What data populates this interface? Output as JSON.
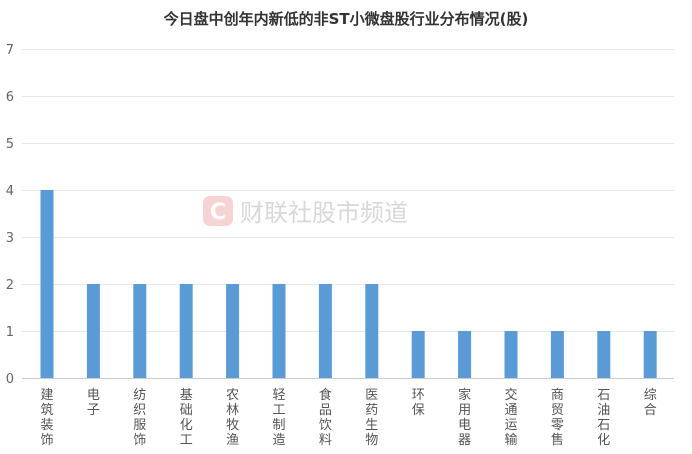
{
  "chart_data": {
    "type": "bar",
    "title": "今日盘中创年内新低的非ST小微盘股行业分布情况(股)",
    "xlabel": "",
    "ylabel": "",
    "categories": [
      "建筑装饰",
      "电子",
      "纺织服饰",
      "基础化工",
      "农林牧渔",
      "轻工制造",
      "食品饮料",
      "医药生物",
      "环保",
      "家用电器",
      "交通运输",
      "商贸零售",
      "石油石化",
      "综合"
    ],
    "values": [
      4,
      2,
      2,
      2,
      2,
      2,
      2,
      2,
      1,
      1,
      1,
      1,
      1,
      1
    ],
    "ylim": [
      0,
      7
    ],
    "yticks": [
      "0",
      "1",
      "2",
      "3",
      "4",
      "5",
      "6",
      "7"
    ],
    "grid": true,
    "legend": "none",
    "bar_color": "#5b9bd5"
  },
  "watermark": {
    "logo_glyph": "C",
    "text": "财联社股市频道"
  }
}
